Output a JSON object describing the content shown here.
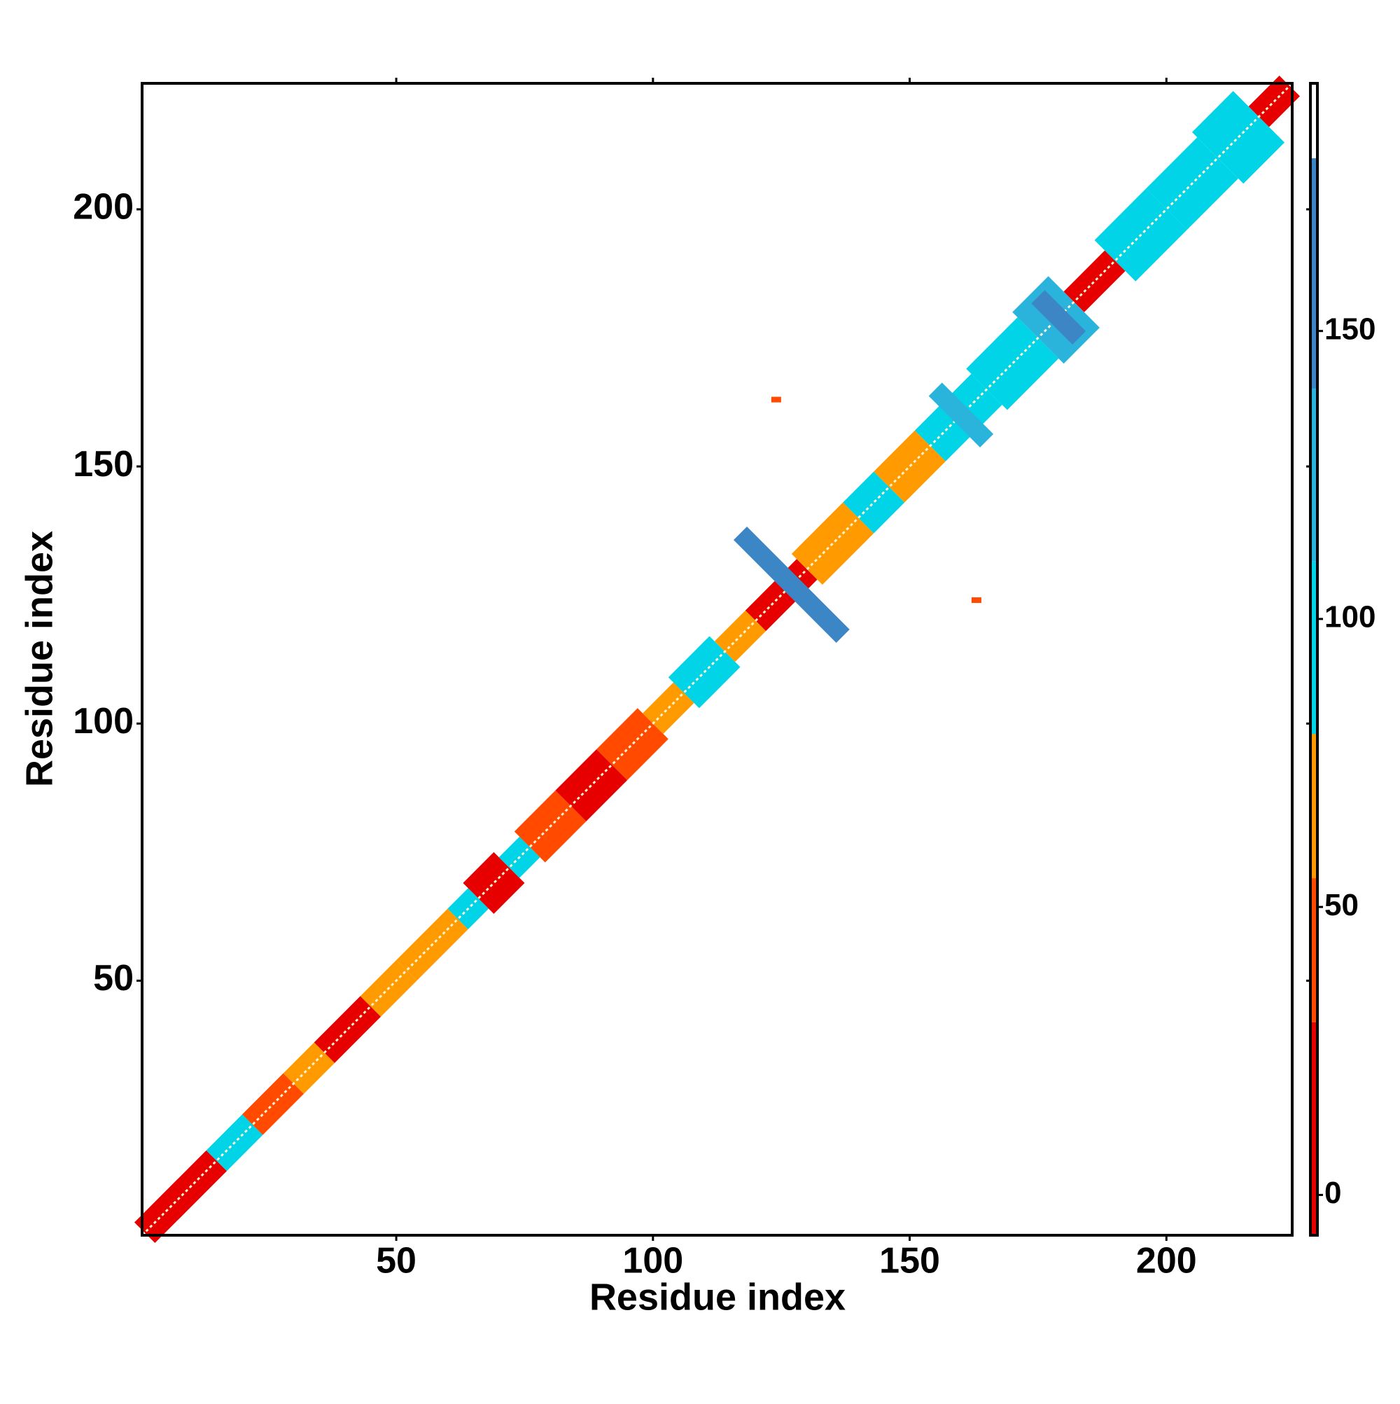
{
  "chart_data": {
    "type": "contact_map",
    "xlabel": "Residue index",
    "ylabel": "Residue index",
    "xlim": [
      0.5,
      224.5
    ],
    "ylim": [
      0.5,
      224.5
    ],
    "xticks": [
      50,
      100,
      150,
      200
    ],
    "yticks": [
      50,
      100,
      150,
      200
    ],
    "colorbar": {
      "lim": [
        -7,
        193
      ],
      "ticks": [
        0,
        50,
        100,
        150
      ],
      "bounds": [
        -7,
        30,
        55,
        80,
        110,
        140,
        180,
        193
      ],
      "colors": [
        "#e60000",
        "#ff4a00",
        "#ff9a00",
        "#00d4e6",
        "#2ab4dc",
        "#3d86c6",
        "#ffffff"
      ]
    },
    "segments": {
      "start": [
        1,
        15,
        22,
        30,
        36,
        45,
        52,
        62,
        66,
        72,
        76,
        84,
        92,
        100,
        106,
        114,
        120,
        130,
        140,
        146,
        154,
        165,
        175,
        182,
        190,
        200,
        210,
        218
      ],
      "end": [
        15,
        22,
        30,
        36,
        45,
        52,
        62,
        66,
        72,
        76,
        84,
        92,
        100,
        106,
        114,
        120,
        130,
        140,
        146,
        154,
        165,
        175,
        182,
        190,
        200,
        210,
        218,
        224
      ],
      "values": [
        25,
        95,
        40,
        65,
        15,
        60,
        70,
        95,
        20,
        95,
        35,
        20,
        40,
        55,
        90,
        60,
        5,
        55,
        90,
        60,
        100,
        95,
        120,
        25,
        85,
        95,
        100,
        20
      ],
      "half_width": [
        2,
        2,
        2,
        2,
        2,
        2,
        2,
        2,
        3,
        2,
        3,
        3,
        3,
        2,
        3,
        2,
        2,
        3,
        3,
        3,
        3,
        4,
        5,
        2,
        4,
        4,
        5,
        2
      ]
    },
    "crosses": {
      "center": [
        127,
        160,
        179
      ],
      "arm": [
        10,
        5,
        4
      ],
      "values": [
        145,
        130,
        150
      ]
    },
    "spots": {
      "x": [
        124,
        163
      ],
      "y": [
        163,
        124
      ],
      "values": [
        40,
        40
      ]
    }
  }
}
